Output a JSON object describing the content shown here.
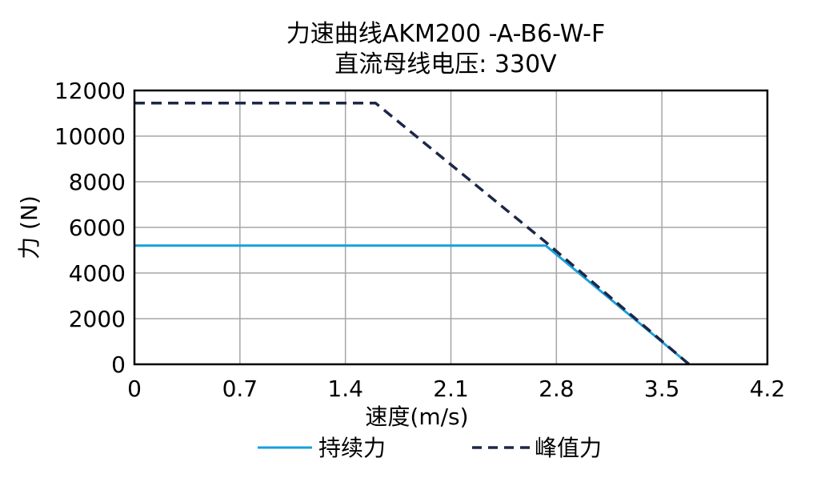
{
  "chart_data": {
    "type": "line",
    "title_line1": "力速曲线AKM200 -A-B6-W-F",
    "title_line2": "直流母线电压: 330V",
    "xlabel": "速度(m/s)",
    "ylabel": "力 (N)",
    "xlim": [
      0,
      4.2
    ],
    "ylim": [
      0,
      12000
    ],
    "x_ticks": [
      "0",
      "0.7",
      "1.4",
      "2.1",
      "2.8",
      "3.5",
      "4.2"
    ],
    "y_ticks": [
      "0",
      "2000",
      "4000",
      "6000",
      "8000",
      "10000",
      "12000"
    ],
    "grid": true,
    "legend_position": "bottom",
    "series": [
      {
        "name": "持续力",
        "color": "#1a9fdc",
        "style": "solid",
        "points": [
          [
            0,
            5200
          ],
          [
            2.73,
            5200
          ],
          [
            3.68,
            0
          ]
        ]
      },
      {
        "name": "峰值力",
        "color": "#1c2748",
        "style": "dashed",
        "points": [
          [
            0,
            11450
          ],
          [
            1.6,
            11450
          ],
          [
            2.73,
            5350
          ],
          [
            3.68,
            0
          ]
        ]
      }
    ]
  }
}
